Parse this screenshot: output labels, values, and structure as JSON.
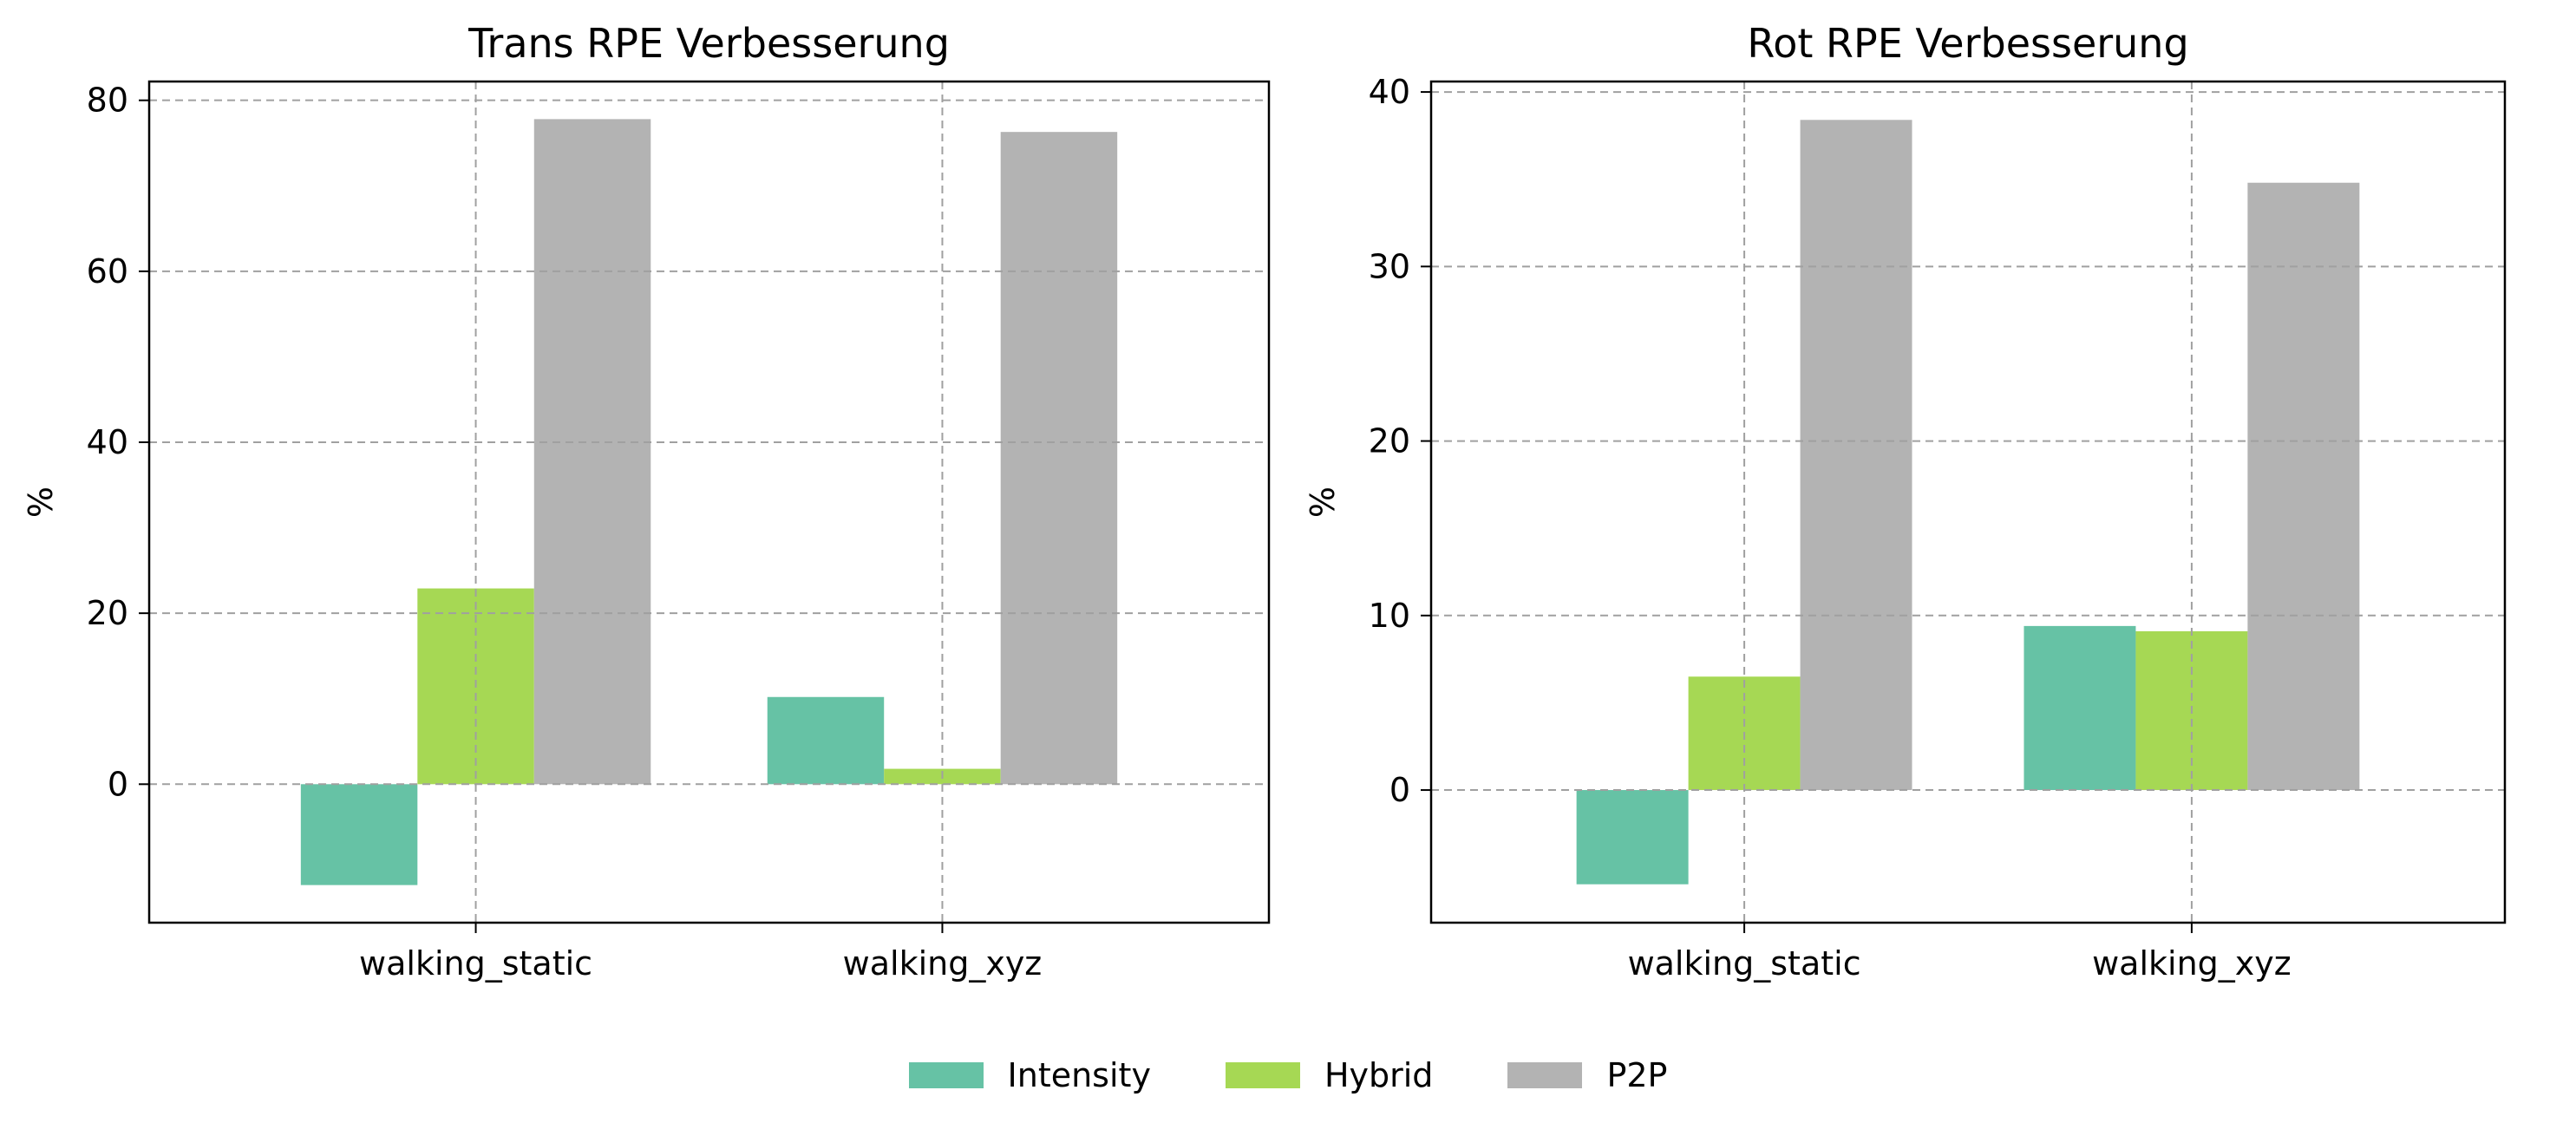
{
  "chart_data": [
    {
      "type": "bar",
      "title": "Trans RPE Verbesserung",
      "xlabel": "",
      "ylabel": "%",
      "categories": [
        "walking_static",
        "walking_xyz"
      ],
      "series": [
        {
          "name": "Intensity",
          "values": [
            -11.8,
            10.2
          ]
        },
        {
          "name": "Hybrid",
          "values": [
            22.9,
            1.8
          ]
        },
        {
          "name": "P2P",
          "values": [
            77.8,
            76.3
          ]
        }
      ],
      "ylim": [
        -16.2,
        82.2
      ],
      "yticks": [
        0,
        20,
        40,
        60,
        80
      ],
      "grid": true
    },
    {
      "type": "bar",
      "title": "Rot RPE Verbesserung",
      "xlabel": "",
      "ylabel": "%",
      "categories": [
        "walking_static",
        "walking_xyz"
      ],
      "series": [
        {
          "name": "Intensity",
          "values": [
            -5.4,
            9.4
          ]
        },
        {
          "name": "Hybrid",
          "values": [
            6.5,
            9.1
          ]
        },
        {
          "name": "P2P",
          "values": [
            38.4,
            34.8
          ]
        }
      ],
      "ylim": [
        -7.6,
        40.6
      ],
      "yticks": [
        0,
        10,
        20,
        30,
        40
      ],
      "grid": true
    }
  ],
  "legend": {
    "placement": "bottom-center",
    "items": [
      {
        "label": "Intensity",
        "color": "#66c2a5"
      },
      {
        "label": "Hybrid",
        "color": "#a6d854"
      },
      {
        "label": "P2P",
        "color": "#b3b3b3"
      }
    ]
  },
  "colors": {
    "Intensity": "#66c2a5",
    "Hybrid": "#a6d854",
    "P2P": "#b3b3b3",
    "grid": "#a0a0a0"
  }
}
